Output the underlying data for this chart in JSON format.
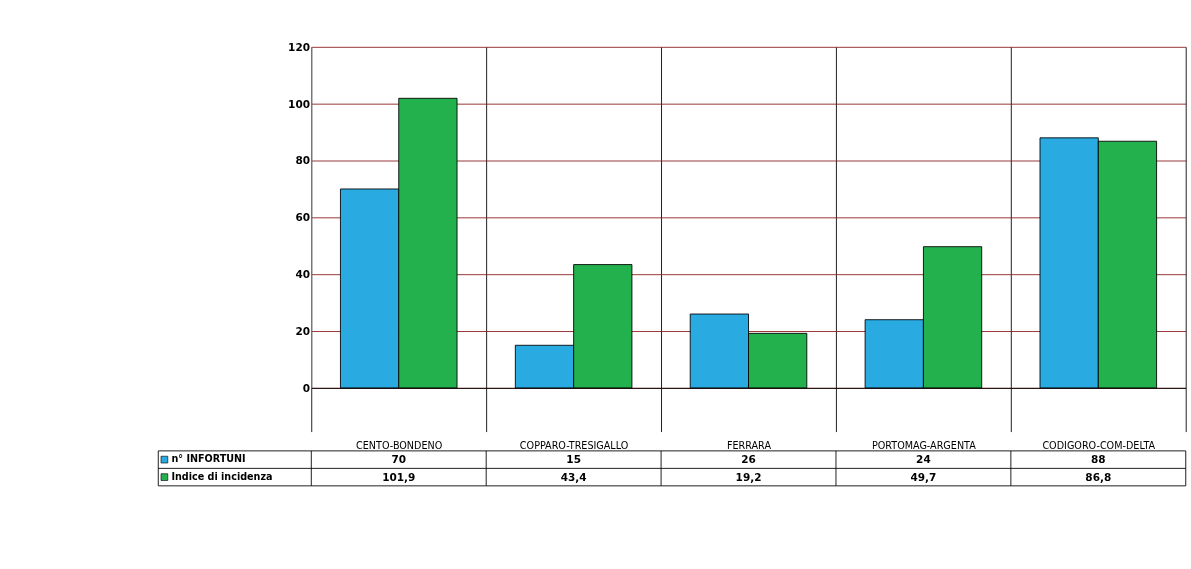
{
  "chart_data": {
    "type": "bar",
    "categories": [
      "CENTO-BONDENO",
      "COPPARO-TRESIGALLO",
      "FERRARA",
      "PORTOMAG-ARGENTA",
      "CODIGORO-COM-DELTA"
    ],
    "series": [
      {
        "name": "n° INFORTUNI",
        "color": "#29abe2",
        "values": [
          70,
          15,
          26,
          24,
          88
        ],
        "value_labels": [
          "70",
          "15",
          "26",
          "24",
          "88"
        ]
      },
      {
        "name": "Indice di incidenza",
        "color": "#22b14c",
        "values": [
          101.9,
          43.4,
          19.2,
          49.7,
          86.8
        ],
        "value_labels": [
          "101,9",
          "43,4",
          "19,2",
          "49,7",
          "86,8"
        ]
      }
    ],
    "ylim": [
      0,
      120
    ],
    "yticks": [
      0,
      20,
      40,
      60,
      80,
      100,
      120
    ],
    "grid": "y",
    "legend": "bottom left"
  }
}
